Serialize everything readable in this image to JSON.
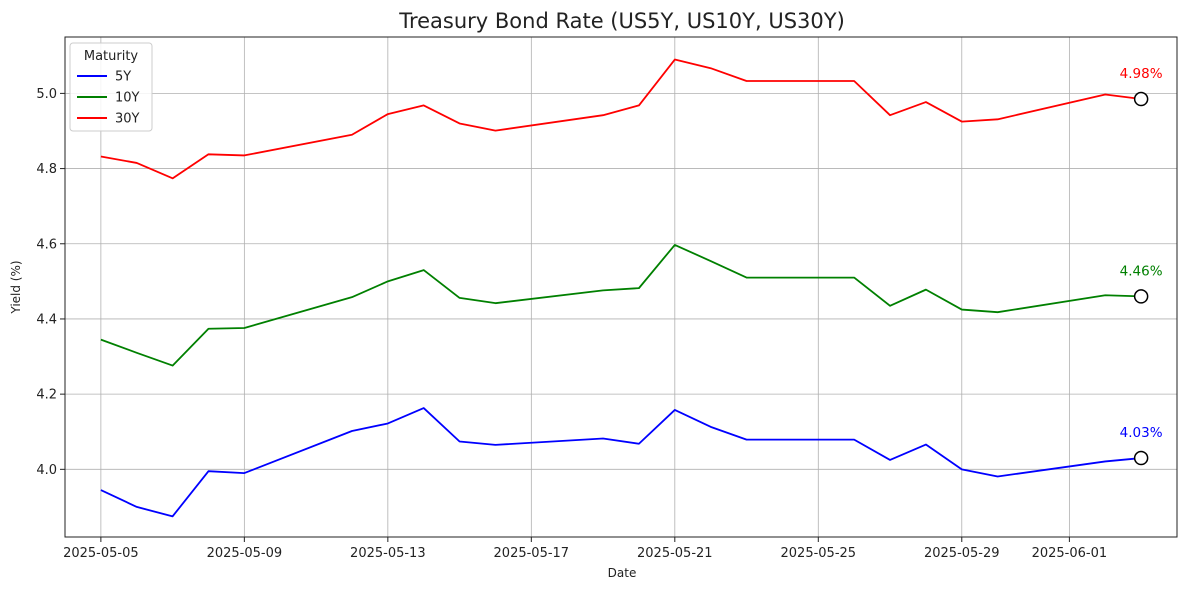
{
  "chart_data": {
    "type": "line",
    "title": "Treasury Bond Rate (US5Y, US10Y, US30Y)",
    "xlabel": "Date",
    "ylabel": "Yield (%)",
    "x_is_date": true,
    "xlim": [
      "2025-05-04",
      "2025-06-04"
    ],
    "ylim": [
      3.82,
      5.15
    ],
    "y_ticks": [
      4.0,
      4.2,
      4.4,
      4.6,
      4.8,
      5.0
    ],
    "y_tick_labels": [
      "4.0",
      "4.2",
      "4.4",
      "4.6",
      "4.8",
      "5.0"
    ],
    "x_ticks": [
      "2025-05-05",
      "2025-05-09",
      "2025-05-13",
      "2025-05-17",
      "2025-05-21",
      "2025-05-25",
      "2025-05-29",
      "2025-06-01"
    ],
    "x_tick_labels": [
      "2025-05-05",
      "2025-05-09",
      "2025-05-13",
      "2025-05-17",
      "2025-05-21",
      "2025-05-25",
      "2025-05-29",
      "2025-06-01"
    ],
    "grid": true,
    "legend": {
      "title": "Maturity",
      "position": "top-left"
    },
    "x": [
      "2025-05-05",
      "2025-05-06",
      "2025-05-07",
      "2025-05-08",
      "2025-05-09",
      "2025-05-12",
      "2025-05-13",
      "2025-05-14",
      "2025-05-15",
      "2025-05-16",
      "2025-05-19",
      "2025-05-20",
      "2025-05-21",
      "2025-05-22",
      "2025-05-23",
      "2025-05-26",
      "2025-05-27",
      "2025-05-28",
      "2025-05-29",
      "2025-05-30",
      "2025-06-02",
      "2025-06-03"
    ],
    "series": [
      {
        "name": "5Y",
        "color": "#0000ff",
        "values": [
          3.945,
          3.9,
          3.875,
          3.995,
          3.99,
          4.102,
          4.122,
          4.163,
          4.074,
          4.065,
          4.082,
          4.068,
          4.158,
          4.113,
          4.079,
          4.079,
          4.025,
          4.066,
          4.0,
          3.981,
          4.021,
          4.03
        ],
        "end_label": "4.03%"
      },
      {
        "name": "10Y",
        "color": "#008000",
        "values": [
          4.345,
          4.31,
          4.276,
          4.374,
          4.376,
          4.458,
          4.5,
          4.53,
          4.456,
          4.442,
          4.476,
          4.482,
          4.597,
          4.554,
          4.51,
          4.51,
          4.435,
          4.478,
          4.425,
          4.418,
          4.463,
          4.46
        ],
        "end_label": "4.46%"
      },
      {
        "name": "30Y",
        "color": "#ff0000",
        "values": [
          4.832,
          4.815,
          4.774,
          4.838,
          4.835,
          4.89,
          4.945,
          4.968,
          4.92,
          4.901,
          4.942,
          4.968,
          5.09,
          5.067,
          5.033,
          5.033,
          4.942,
          4.977,
          4.925,
          4.931,
          4.997,
          4.985
        ],
        "end_label": "4.98%"
      }
    ]
  }
}
